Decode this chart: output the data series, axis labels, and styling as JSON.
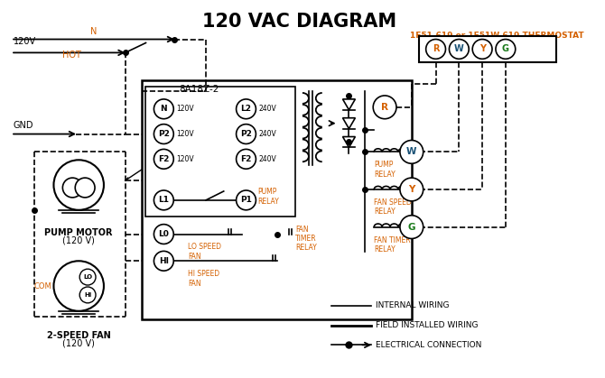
{
  "title": "120 VAC DIAGRAM",
  "background_color": "#ffffff",
  "thermostat_label": "1F51-619 or 1F51W-619 THERMOSTAT",
  "module_label": "8A18Z-2",
  "orange": "#d46000",
  "blue": "#1a5276",
  "black": "#000000",
  "green": "#1a7a1a",
  "pump_motor_label1": "PUMP MOTOR",
  "pump_motor_label2": "(120 V)",
  "fan_label1": "2-SPEED FAN",
  "fan_label2": "(120 V)",
  "com_label": "COM",
  "gnd_label": "GND",
  "n_label": "N",
  "hot_label": "HOT",
  "v120_label": "120V",
  "legend": [
    "INTERNAL WIRING",
    "FIELD INSTALLED WIRING",
    "ELECTRICAL CONNECTION"
  ]
}
